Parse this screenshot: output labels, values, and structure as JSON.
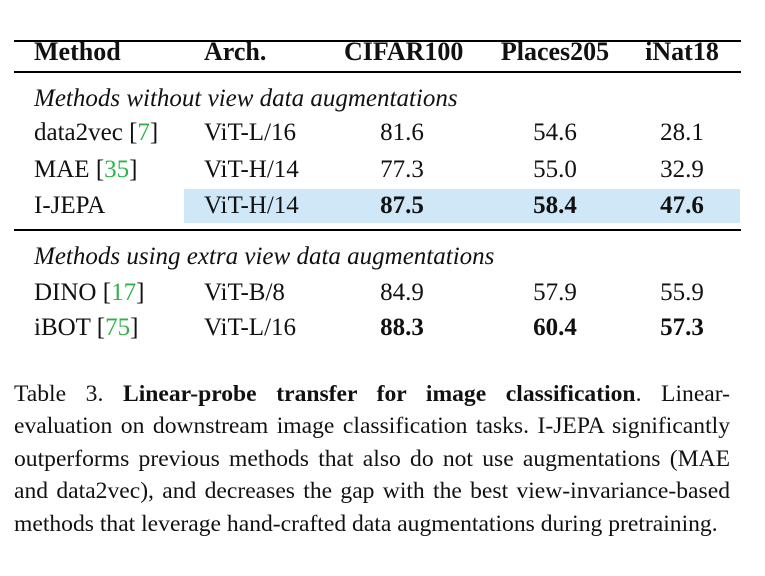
{
  "table": {
    "headers": [
      "Method",
      "Arch.",
      "CIFAR100",
      "Places205",
      "iNat18"
    ],
    "sections": [
      {
        "title": "Methods without view data augmentations",
        "rows": [
          {
            "method": "data2vec",
            "cite": "7",
            "arch": "ViT-L/16",
            "cifar100": "81.6",
            "places205": "54.6",
            "inat18": "28.1",
            "highlight": false,
            "bold": false
          },
          {
            "method": "MAE",
            "cite": "35",
            "arch": "ViT-H/14",
            "cifar100": "77.3",
            "places205": "55.0",
            "inat18": "32.9",
            "highlight": false,
            "bold": false
          },
          {
            "method": "I-JEPA",
            "cite": "",
            "arch": "ViT-H/14",
            "cifar100": "87.5",
            "places205": "58.4",
            "inat18": "47.6",
            "highlight": true,
            "bold": true
          }
        ]
      },
      {
        "title": "Methods using extra view data augmentations",
        "rows": [
          {
            "method": "DINO",
            "cite": "17",
            "arch": "ViT-B/8",
            "cifar100": "84.9",
            "places205": "57.9",
            "inat18": "55.9",
            "highlight": false,
            "bold": false
          },
          {
            "method": "iBOT",
            "cite": "75",
            "arch": "ViT-L/16",
            "cifar100": "88.3",
            "places205": "60.4",
            "inat18": "57.3",
            "highlight": false,
            "bold": true
          }
        ]
      }
    ]
  },
  "caption": {
    "label": "Table 3. ",
    "title": "Linear-probe transfer for image classification",
    "body": ". Linear-evaluation on downstream image classification tasks. I-JEPA significantly outperforms previous methods that also do not use augmentations (MAE and data2vec), and decreases the gap with the best view-invariance-based methods that leverage hand-crafted data augmentations during pretraining."
  },
  "colors": {
    "highlight": "#cfe7f7",
    "citation": "#2db34a"
  }
}
